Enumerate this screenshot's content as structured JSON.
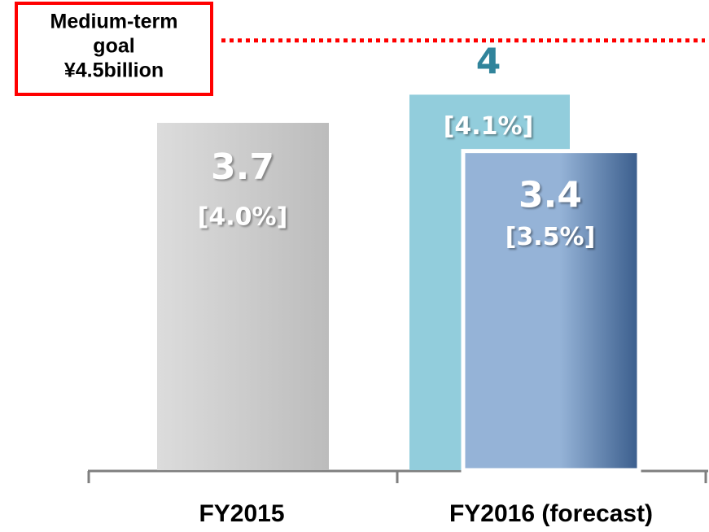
{
  "chart_data": {
    "type": "bar",
    "categories": [
      "FY2015",
      "FY2016 (forecast)"
    ],
    "series": [
      {
        "values": [
          3.7,
          4.0
        ],
        "colors": [
          "#c8c8c8",
          "#92cddc"
        ],
        "label_colors": [
          "#ffffff",
          "#31849b"
        ],
        "margins": [
          4.0,
          4.1
        ],
        "margin_labels": [
          "[4.0%]",
          "[4.1%]"
        ]
      },
      {
        "values": [
          null,
          3.4
        ],
        "colors": [
          null,
          "#6f8fba"
        ],
        "label_colors": [
          null,
          "#ffffff"
        ],
        "margins": [
          null,
          3.5
        ],
        "margin_labels": [
          null,
          "[3.5%]"
        ]
      }
    ],
    "ylim": [
      0,
      5
    ],
    "goal": {
      "value": 4.5,
      "color": "#ff0000",
      "label_lines": [
        "Medium-term",
        "goal",
        "¥4.5billion"
      ]
    }
  }
}
